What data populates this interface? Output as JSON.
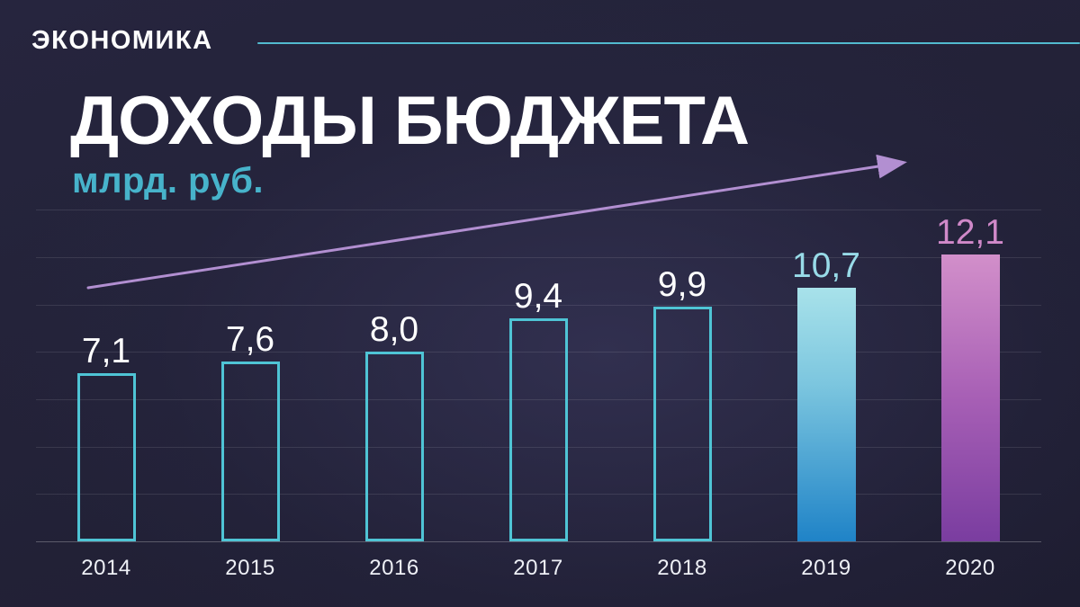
{
  "header": {
    "category_label": "ЭКОНОМИКА"
  },
  "title": "ДОХОДЫ БЮДЖЕТА",
  "subtitle": "млрд. руб.",
  "colors": {
    "background": "#232238",
    "accent_teal": "#4fc4d5",
    "rule_teal": "#52bacf",
    "subtitle_teal": "#47b3cb",
    "arrow_purple": "#b28fd1",
    "blue_bar_top": "#a8e2ea",
    "blue_bar_bottom": "#1f83c7",
    "purple_bar_top": "#d28fca",
    "purple_bar_bottom": "#7a3da0",
    "label_white": "#ffffff",
    "label_cyan": "#98dbe8",
    "label_pink": "#d089c9"
  },
  "chart_data": {
    "type": "bar",
    "title": "ДОХОДЫ БЮДЖЕТА",
    "ylabel": "млрд. руб.",
    "xlabel": "",
    "categories": [
      "2014",
      "2015",
      "2016",
      "2017",
      "2018",
      "2019",
      "2020"
    ],
    "values": [
      7.1,
      7.6,
      8.0,
      9.4,
      9.9,
      10.7,
      12.1
    ],
    "ylim": [
      0,
      14
    ],
    "grid_step": 2,
    "grid": "horizontal",
    "legend": "none",
    "annotations": [
      "upward trend arrow from lower-left to upper-right"
    ],
    "bars": [
      {
        "year": "2014",
        "value": 7.1,
        "label": "7,1",
        "style": "outline",
        "label_color": "#ffffff"
      },
      {
        "year": "2015",
        "value": 7.6,
        "label": "7,6",
        "style": "outline",
        "label_color": "#ffffff"
      },
      {
        "year": "2016",
        "value": 8.0,
        "label": "8,0",
        "style": "outline",
        "label_color": "#ffffff"
      },
      {
        "year": "2017",
        "value": 9.4,
        "label": "9,4",
        "style": "outline",
        "label_color": "#ffffff"
      },
      {
        "year": "2018",
        "value": 9.9,
        "label": "9,9",
        "style": "outline",
        "label_color": "#ffffff"
      },
      {
        "year": "2019",
        "value": 10.7,
        "label": "10,7",
        "style": "fill-blue",
        "label_color": "#98dbe8"
      },
      {
        "year": "2020",
        "value": 12.1,
        "label": "12,1",
        "style": "fill-purple",
        "label_color": "#d089c9"
      }
    ]
  }
}
